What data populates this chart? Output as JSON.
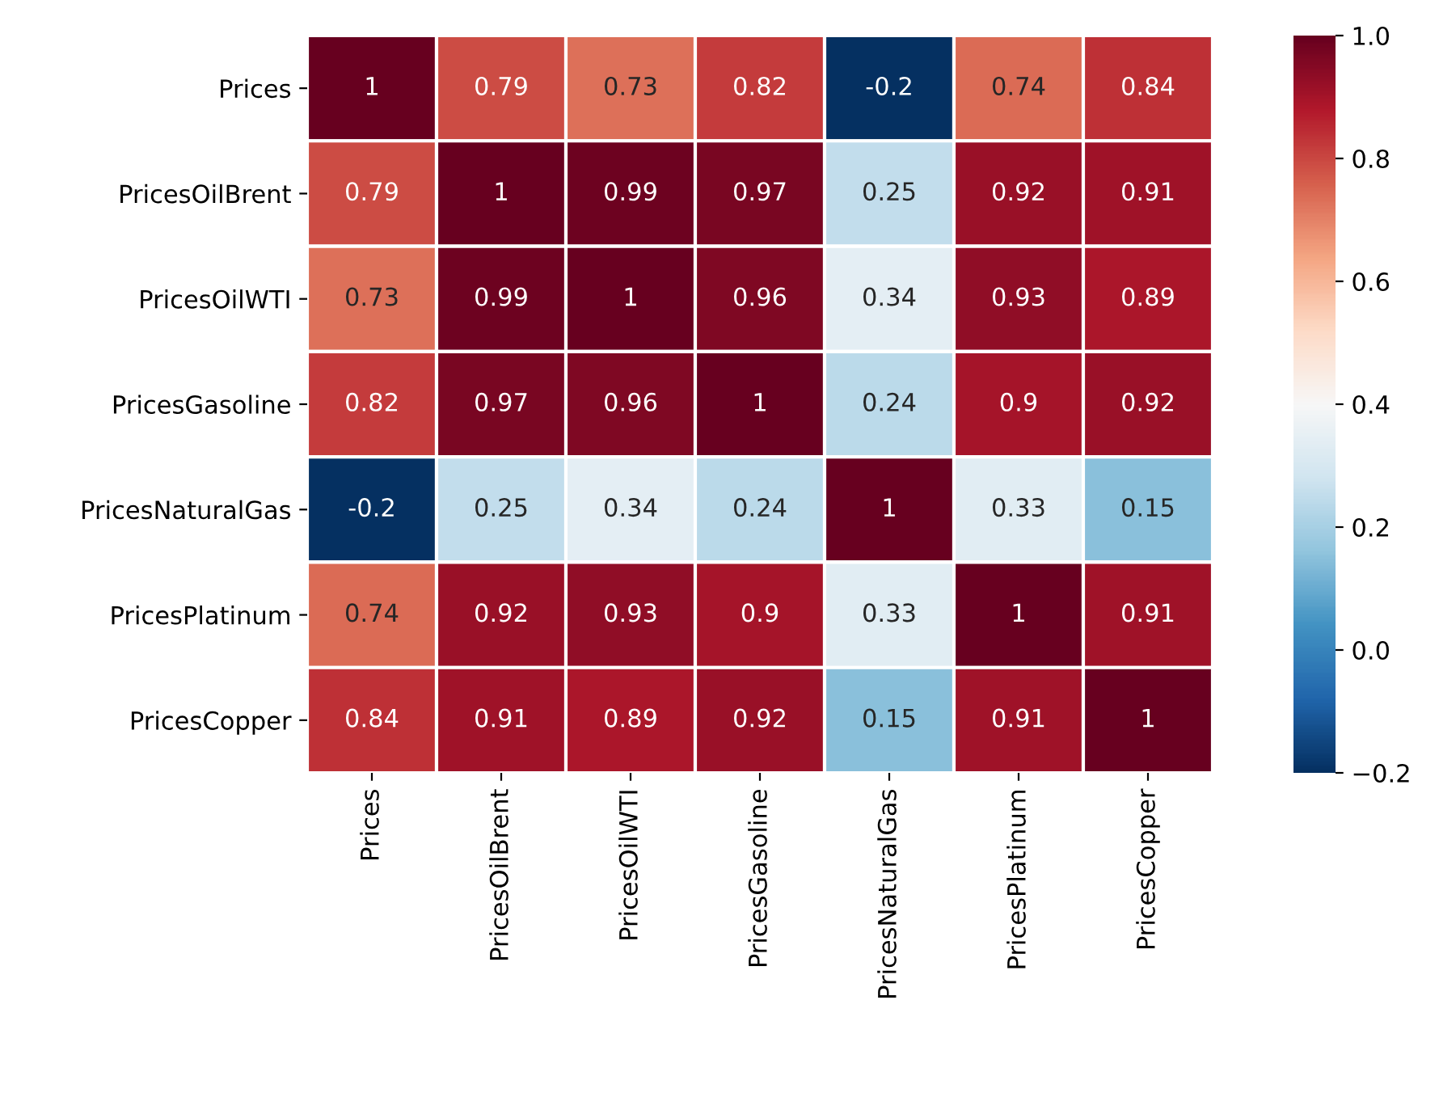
{
  "chart_data": {
    "type": "heatmap",
    "categories": [
      "Prices",
      "PricesOilBrent",
      "PricesOilWTI",
      "PricesGasoline",
      "PricesNaturalGas",
      "PricesPlatinum",
      "PricesCopper"
    ],
    "y_categories": [
      "Prices",
      "PricesOilBrent",
      "PricesOilWTI",
      "PricesGasoline",
      "PricesNaturalGas",
      "PricesPlatinum",
      "PricesCopper"
    ],
    "cells": [
      [
        1,
        0.79,
        0.73,
        0.82,
        -0.2,
        0.74,
        0.84
      ],
      [
        0.79,
        1,
        0.99,
        0.97,
        0.25,
        0.92,
        0.91
      ],
      [
        0.73,
        0.99,
        1,
        0.96,
        0.34,
        0.93,
        0.89
      ],
      [
        0.82,
        0.97,
        0.96,
        1,
        0.24,
        0.9,
        0.92
      ],
      [
        -0.2,
        0.25,
        0.34,
        0.24,
        1,
        0.33,
        0.15
      ],
      [
        0.74,
        0.92,
        0.93,
        0.9,
        0.33,
        1,
        0.91
      ],
      [
        0.84,
        0.91,
        0.89,
        0.92,
        0.15,
        0.91,
        1
      ]
    ],
    "data_labels": true,
    "clim": [
      -0.2,
      1.0
    ],
    "cticks": [
      {
        "value": -0.2,
        "label": "−0.2"
      },
      {
        "value": 0.0,
        "label": "0.0"
      },
      {
        "value": 0.2,
        "label": "0.2"
      },
      {
        "value": 0.4,
        "label": "0.4"
      },
      {
        "value": 0.6,
        "label": "0.6"
      },
      {
        "value": 0.8,
        "label": "0.8"
      },
      {
        "value": 1.0,
        "label": "1.0"
      }
    ]
  }
}
